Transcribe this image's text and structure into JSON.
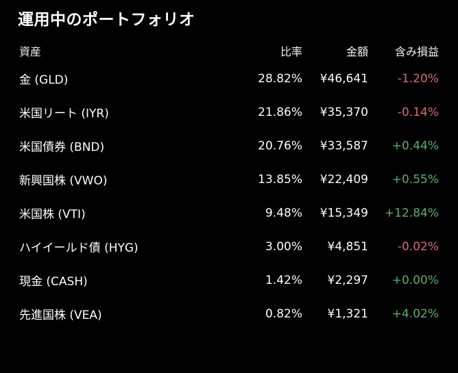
{
  "title": "運用中のポートフォリオ",
  "header": {
    "asset": "資産",
    "ratio": "比率",
    "amount": "金額",
    "change": "含み損益"
  },
  "colors": {
    "background": "#000000",
    "text": "#ffffff",
    "positive": "#5fae69",
    "negative": "#d96a6a"
  },
  "rows": [
    {
      "name": "金 (GLD)",
      "ratio": "28.82%",
      "amount": "¥46,641",
      "change": "-1.20%",
      "trend": "neg"
    },
    {
      "name": "米国リート (IYR)",
      "ratio": "21.86%",
      "amount": "¥35,370",
      "change": "-0.14%",
      "trend": "neg"
    },
    {
      "name": "米国債券 (BND)",
      "ratio": "20.76%",
      "amount": "¥33,587",
      "change": "+0.44%",
      "trend": "pos"
    },
    {
      "name": "新興国株 (VWO)",
      "ratio": "13.85%",
      "amount": "¥22,409",
      "change": "+0.55%",
      "trend": "pos"
    },
    {
      "name": "米国株 (VTI)",
      "ratio": "9.48%",
      "amount": "¥15,349",
      "change": "+12.84%",
      "trend": "pos"
    },
    {
      "name": "ハイイールド債 (HYG)",
      "ratio": "3.00%",
      "amount": "¥4,851",
      "change": "-0.02%",
      "trend": "neg"
    },
    {
      "name": "現金 (CASH)",
      "ratio": "1.42%",
      "amount": "¥2,297",
      "change": "+0.00%",
      "trend": "pos"
    },
    {
      "name": "先進国株 (VEA)",
      "ratio": "0.82%",
      "amount": "¥1,321",
      "change": "+4.02%",
      "trend": "pos"
    }
  ]
}
